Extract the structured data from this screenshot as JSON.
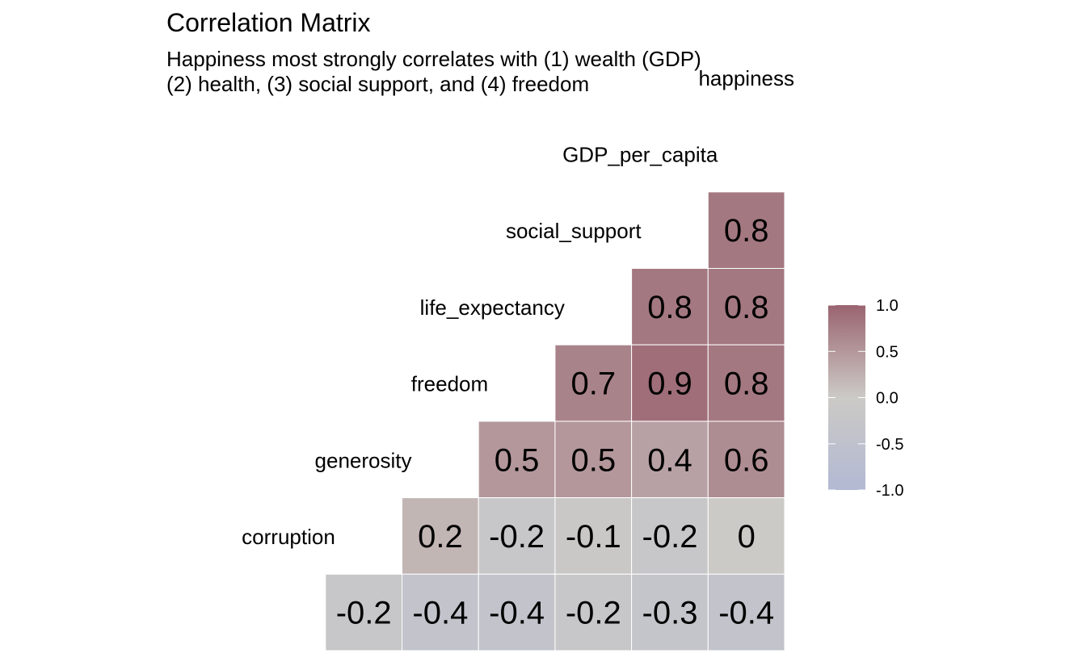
{
  "chart_data": {
    "type": "heatmap",
    "title": "Correlation Matrix",
    "subtitle_lines": [
      "Happiness most strongly correlates with (1) wealth (GDP)",
      "(2) health, (3) social support, and (4) freedom"
    ],
    "variables": [
      "happiness",
      "GDP_per_capita",
      "social_support",
      "life_expectancy",
      "freedom",
      "generosity",
      "corruption"
    ],
    "cells": [
      {
        "row": "GDP_per_capita",
        "col": "happiness",
        "value": 0.8
      },
      {
        "row": "social_support",
        "col": "GDP_per_capita",
        "value": 0.8
      },
      {
        "row": "social_support",
        "col": "happiness",
        "value": 0.8
      },
      {
        "row": "life_expectancy",
        "col": "social_support",
        "value": 0.7
      },
      {
        "row": "life_expectancy",
        "col": "GDP_per_capita",
        "value": 0.9
      },
      {
        "row": "life_expectancy",
        "col": "happiness",
        "value": 0.8
      },
      {
        "row": "freedom",
        "col": "life_expectancy",
        "value": 0.5
      },
      {
        "row": "freedom",
        "col": "social_support",
        "value": 0.5
      },
      {
        "row": "freedom",
        "col": "GDP_per_capita",
        "value": 0.4
      },
      {
        "row": "freedom",
        "col": "happiness",
        "value": 0.6
      },
      {
        "row": "generosity",
        "col": "freedom",
        "value": 0.2
      },
      {
        "row": "generosity",
        "col": "life_expectancy",
        "value": -0.2
      },
      {
        "row": "generosity",
        "col": "social_support",
        "value": -0.1
      },
      {
        "row": "generosity",
        "col": "GDP_per_capita",
        "value": -0.2
      },
      {
        "row": "generosity",
        "col": "happiness",
        "value": 0
      },
      {
        "row": "corruption",
        "col": "generosity",
        "value": -0.2
      },
      {
        "row": "corruption",
        "col": "freedom",
        "value": -0.4
      },
      {
        "row": "corruption",
        "col": "life_expectancy",
        "value": -0.4
      },
      {
        "row": "corruption",
        "col": "social_support",
        "value": -0.2
      },
      {
        "row": "corruption",
        "col": "GDP_per_capita",
        "value": -0.3
      },
      {
        "row": "corruption",
        "col": "happiness",
        "value": -0.4
      }
    ],
    "legend": {
      "placement": "right",
      "range": [
        -1.0,
        1.0
      ],
      "ticks": [
        "1.0",
        "0.5",
        "0.0",
        "-0.5",
        "-1.0"
      ],
      "tick_values": [
        1.0,
        0.5,
        0.0,
        -0.5,
        -1.0
      ]
    },
    "colors": {
      "low": "#B2B9D3",
      "mid": "#CCCAC6",
      "high": "#9A6470",
      "gridline": "#FFFFFF"
    }
  }
}
